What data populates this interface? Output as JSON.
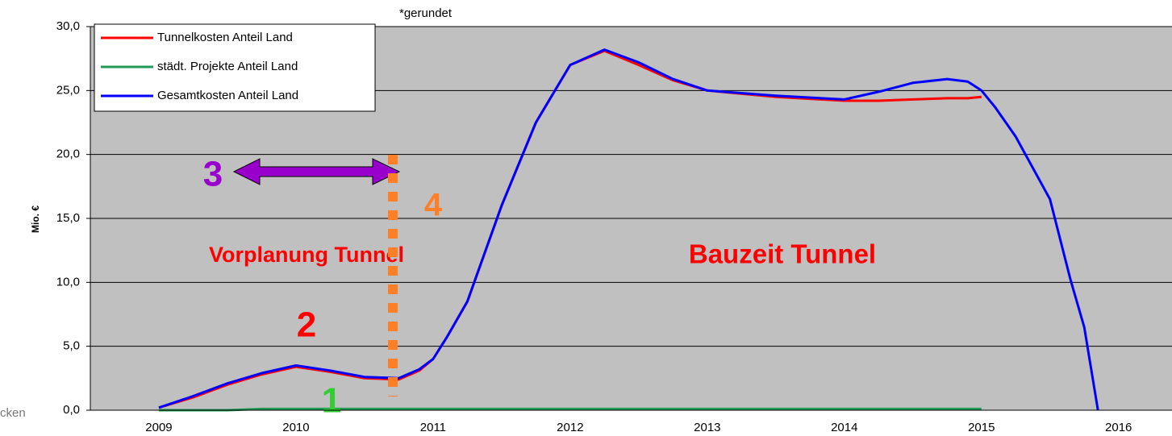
{
  "chart_data": {
    "type": "line",
    "note": "*gerundet",
    "ylabel": "Mio. €",
    "fragment": "cken",
    "annotations": [
      "Vorplanung Tunnel",
      "Bauzeit Tunnel",
      "1",
      "2",
      "3",
      "4"
    ],
    "x": [
      2009,
      2009.25,
      2009.5,
      2009.75,
      2010,
      2010.25,
      2010.5,
      2010.75,
      2010.9,
      2011,
      2011.1,
      2011.25,
      2011.5,
      2011.75,
      2012,
      2012.25,
      2012.5,
      2012.75,
      2013,
      2013.5,
      2014,
      2014.25,
      2014.5,
      2014.75,
      2014.9,
      2015,
      2015.1,
      2015.25,
      2015.5,
      2015.65,
      2015.75,
      2015.85
    ],
    "series": [
      {
        "name": "Tunnelkosten Anteil Land",
        "color": "#ff0000",
        "values": [
          0.2,
          1.0,
          2.0,
          2.8,
          3.4,
          3.0,
          2.5,
          2.4,
          3.1,
          4.0,
          5.7,
          8.5,
          16.0,
          22.5,
          27.0,
          28.1,
          27.0,
          25.8,
          25.0,
          24.5,
          24.2,
          24.2,
          24.3,
          24.4,
          24.4,
          24.5,
          null,
          null,
          null,
          null,
          null,
          null
        ]
      },
      {
        "name": "städt. Projekte Anteil Land",
        "color": "#229954",
        "values": [
          0,
          0,
          0,
          0.1,
          0.1,
          0.1,
          0.1,
          0.1,
          0.1,
          0.1,
          0.1,
          0.1,
          0.1,
          0.1,
          0.1,
          0.1,
          0.1,
          0.1,
          0.1,
          0.1,
          0.1,
          0.1,
          0.1,
          0.1,
          0.1,
          0.1,
          null,
          null,
          null,
          null,
          null,
          null
        ]
      },
      {
        "name": "Gesamtkosten Anteil Land",
        "color": "#0000ff",
        "values": [
          0.2,
          1.1,
          2.1,
          2.9,
          3.5,
          3.1,
          2.6,
          2.5,
          3.2,
          4.0,
          5.7,
          8.5,
          16.0,
          22.5,
          27.0,
          28.2,
          27.2,
          25.9,
          25.0,
          24.6,
          24.3,
          24.9,
          25.6,
          25.9,
          25.7,
          25.0,
          23.7,
          21.4,
          16.5,
          10.2,
          6.5,
          0.0
        ]
      }
    ],
    "xlim": [
      2008.5,
      2016.39
    ],
    "xticks": [
      2009,
      2010,
      2011,
      2012,
      2013,
      2014,
      2015,
      2016
    ],
    "ylim": [
      0,
      30
    ],
    "yticks": [
      {
        "value": 0,
        "label": "0,0"
      },
      {
        "value": 5,
        "label": "5,0"
      },
      {
        "value": 10,
        "label": "10,0"
      },
      {
        "value": 15,
        "label": "15,0"
      },
      {
        "value": 20,
        "label": "20,0"
      },
      {
        "value": 25,
        "label": "25,0"
      },
      {
        "value": 30,
        "label": "30,0"
      }
    ],
    "grid": true,
    "legend": "upper left"
  }
}
